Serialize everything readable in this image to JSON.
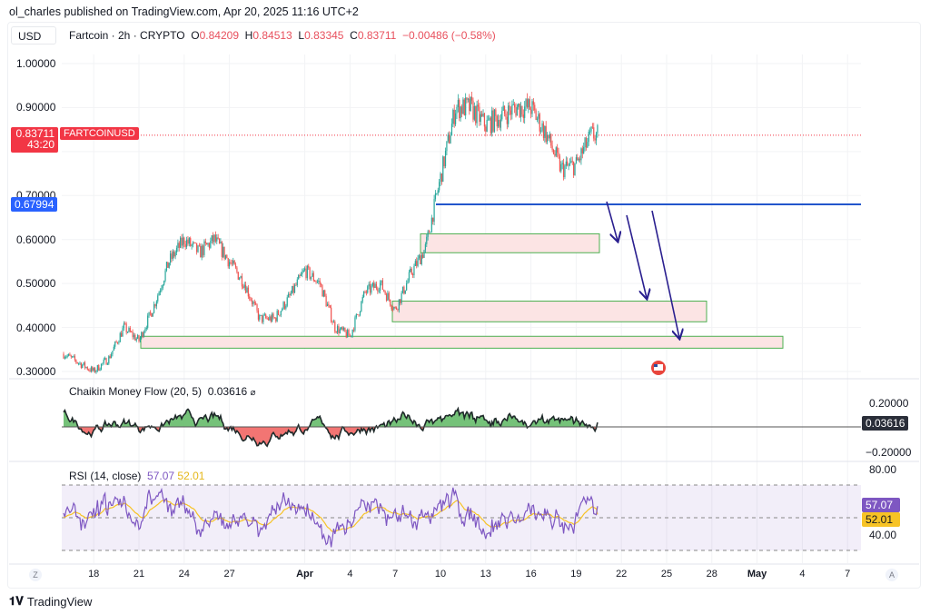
{
  "header": {
    "published": "ol_charles published on TradingView.com, Apr 20, 2025 11:16 UTC+2",
    "currency": "USD",
    "symbol": "Fartcoin · 2h · CRYPTO",
    "o_label": "O",
    "o": "0.84209",
    "h_label": "H",
    "h": "0.84513",
    "l_label": "L",
    "l": "0.83345",
    "c_label": "C",
    "c": "0.83711",
    "change": "−0.00486 (−0.58%)"
  },
  "price_axis": [
    "1.00000",
    "0.90000",
    "0.70000",
    "0.60000",
    "0.50000",
    "0.40000",
    "0.30000"
  ],
  "price_tag": {
    "value": "0.83711",
    "countdown": "43:20",
    "symbol": "FARTCOINUSD",
    "color": "#f23645"
  },
  "level_tag": {
    "value": "0.67994",
    "color": "#2962ff"
  },
  "cmf": {
    "title": "Chaikin Money Flow (20, 5)",
    "value": "0.03616",
    "axis": [
      "0.20000",
      "−0.20000"
    ]
  },
  "rsi": {
    "title": "RSI (14, close)",
    "value": "57.07",
    "ma": "52.01",
    "axis": [
      "80.00",
      "40.00"
    ],
    "color": "#7e57c2",
    "ma_color": "#f7c325"
  },
  "time_axis": [
    {
      "t": "18",
      "d": 2
    },
    {
      "t": "21",
      "d": 5
    },
    {
      "t": "24",
      "d": 8
    },
    {
      "t": "27",
      "d": 11
    },
    {
      "t": "Apr",
      "d": 16,
      "bold": true
    },
    {
      "t": "4",
      "d": 19
    },
    {
      "t": "7",
      "d": 22
    },
    {
      "t": "10",
      "d": 25
    },
    {
      "t": "13",
      "d": 28
    },
    {
      "t": "16",
      "d": 31
    },
    {
      "t": "19",
      "d": 34
    },
    {
      "t": "22",
      "d": 37
    },
    {
      "t": "25",
      "d": 40
    },
    {
      "t": "28",
      "d": 43
    },
    {
      "t": "May",
      "d": 46,
      "bold": true
    },
    {
      "t": "4",
      "d": 49
    },
    {
      "t": "7",
      "d": 52
    }
  ],
  "axis_buttons": {
    "left": "Z",
    "right": "A"
  },
  "footer": {
    "brand": "TradingView"
  },
  "chart_data": {
    "type": "candlestick",
    "approx_daily_close": [
      0.34,
      0.32,
      0.3,
      0.33,
      0.4,
      0.37,
      0.45,
      0.55,
      0.6,
      0.57,
      0.6,
      0.55,
      0.5,
      0.42,
      0.42,
      0.47,
      0.53,
      0.5,
      0.4,
      0.38,
      0.48,
      0.5,
      0.44,
      0.52,
      0.58,
      0.74,
      0.9,
      0.9,
      0.86,
      0.88,
      0.9,
      0.9,
      0.84,
      0.76,
      0.77,
      0.837
    ],
    "start": "Mar 16",
    "ylim": [
      0.28,
      1.03
    ],
    "horizontal_level": 0.67994,
    "zones": [
      [
        0.57,
        0.613
      ],
      [
        0.413,
        0.46
      ],
      [
        0.353,
        0.38
      ]
    ],
    "up_color": "#26a69a",
    "down_color": "#ef5350"
  }
}
